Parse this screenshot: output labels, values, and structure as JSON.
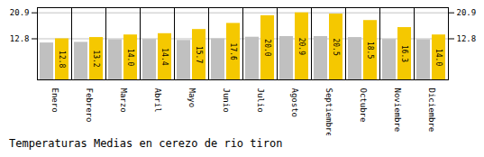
{
  "chart_data": {
    "type": "bar",
    "title": "Temperaturas Medias en cerezo de rio tiron",
    "categories": [
      "Enero",
      "Febrero",
      "Marzo",
      "Abril",
      "Mayo",
      "Junio",
      "Julio",
      "Agosto",
      "Septiembre",
      "Octubre",
      "Noviembre",
      "Diciembre"
    ],
    "series": [
      {
        "color": "#C0C0C0",
        "values": [
          11.5,
          11.7,
          12.5,
          12.6,
          12.3,
          12.8,
          13.3,
          13.5,
          13.5,
          13.2,
          12.6,
          12.5
        ]
      },
      {
        "color": "#F5C800",
        "values": [
          12.8,
          13.2,
          14.0,
          14.4,
          15.7,
          17.6,
          20.0,
          20.9,
          20.5,
          18.5,
          16.3,
          14.0
        ],
        "data_labels": true,
        "value_labels": [
          "12.8",
          "13.2",
          "14.0",
          "14.4",
          "15.7",
          "17.6",
          "20.0",
          "20.9",
          "20.5",
          "18.5",
          "16.3",
          "14.0"
        ]
      }
    ],
    "ylim": [
      0,
      22.5
    ],
    "yticks": [
      12.8,
      20.9
    ],
    "grid": true
  }
}
